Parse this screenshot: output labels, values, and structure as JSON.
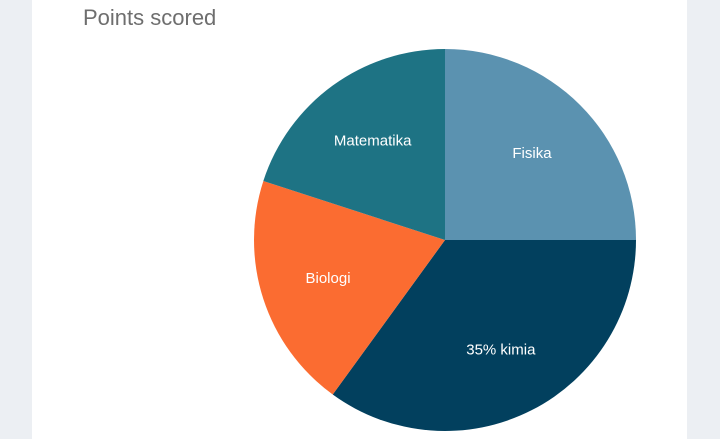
{
  "chart_data": {
    "type": "pie",
    "title": "Points scored",
    "slices": [
      {
        "label": "Fisika",
        "display": "Fisika",
        "value": 25,
        "color": "#5b92b0"
      },
      {
        "label": "kimia",
        "display": "35% kimia",
        "value": 35,
        "color": "#02405e"
      },
      {
        "label": "Biologi",
        "display": "Biologi",
        "value": 20,
        "color": "#fb6c31"
      },
      {
        "label": "Matematika",
        "display": "Matematika",
        "value": 20,
        "color": "#1e7384"
      }
    ],
    "start_angle_deg": 0,
    "direction": "clockwise",
    "legend": "none"
  }
}
